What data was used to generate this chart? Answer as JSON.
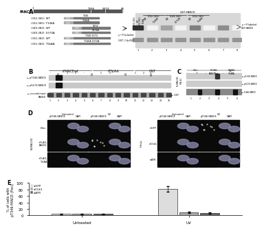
{
  "background_color": "#ffffff",
  "panel_E": {
    "categories": [
      "Untreated",
      "UV"
    ],
    "series": [
      {
        "label": "siGFP",
        "color": "#dddddd",
        "values": [
          4,
          82
        ],
        "errors": [
          1,
          8
        ]
      },
      {
        "label": "siChk1",
        "color": "#aaaaaa",
        "values": [
          4,
          9
        ],
        "errors": [
          1,
          2
        ]
      },
      {
        "label": "siATR",
        "color": "#666666",
        "values": [
          4,
          7
        ],
        "errors": [
          1,
          2
        ]
      }
    ],
    "ylabel": "% of cells with\npT346-FANCE (Foci)",
    "ylim": [
      0,
      100
    ],
    "yticks": [
      0,
      20,
      40,
      60,
      80,
      100
    ]
  }
}
